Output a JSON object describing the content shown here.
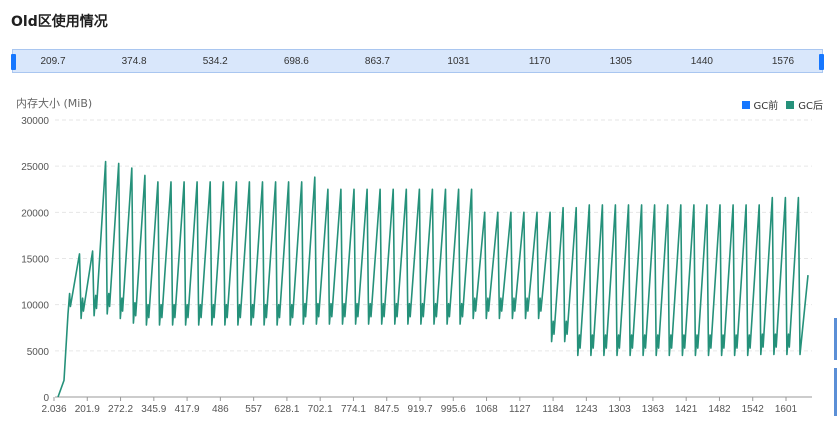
{
  "title": "Old区使用情况",
  "zoom_labels": [
    "209.7",
    "374.8",
    "534.2",
    "698.6",
    "863.7",
    "1031",
    "1170",
    "1305",
    "1440",
    "1576"
  ],
  "colors": {
    "gc_before": "#1677ff",
    "gc_after": "#25917a"
  },
  "chart_data": {
    "type": "line",
    "title": "",
    "xlabel": "",
    "ylabel": "内存大小 (MiB)",
    "ylim": [
      0,
      30000
    ],
    "yticks": [
      0,
      5000,
      10000,
      15000,
      20000,
      25000,
      30000
    ],
    "xtick_labels": [
      "2.036",
      "201.9",
      "272.2",
      "345.9",
      "417.9",
      "486",
      "557",
      "628.1",
      "702.1",
      "774.1",
      "847.5",
      "919.7",
      "995.6",
      "1068",
      "1127",
      "1184",
      "1243",
      "1303",
      "1363",
      "1421",
      "1482",
      "1542",
      "1601"
    ],
    "grid": true,
    "legend": [
      {
        "name": "GC前",
        "color": "#1677ff"
      },
      {
        "name": "GC后",
        "color": "#25917a"
      }
    ],
    "series": [
      {
        "name": "GC后",
        "color": "#25917a",
        "segments": [
          {
            "count": 1,
            "peak": 15500,
            "trough": 9000
          },
          {
            "count": 1,
            "peak": 15800,
            "trough": 8500
          },
          {
            "count": 1,
            "peak": 25500,
            "trough": 8800
          },
          {
            "count": 1,
            "peak": 25300,
            "trough": 9000
          },
          {
            "count": 1,
            "peak": 24800,
            "trough": 8500
          },
          {
            "count": 1,
            "peak": 24000,
            "trough": 8000
          },
          {
            "count": 12,
            "peak": 23300,
            "trough": 7800
          },
          {
            "count": 1,
            "peak": 23800,
            "trough": 7900
          },
          {
            "count": 12,
            "peak": 22500,
            "trough": 7900
          },
          {
            "count": 6,
            "peak": 20000,
            "trough": 8500
          },
          {
            "count": 2,
            "peak": 20500,
            "trough": 6000
          },
          {
            "count": 14,
            "peak": 20800,
            "trough": 4500
          },
          {
            "count": 3,
            "peak": 21600,
            "trough": 4600
          }
        ],
        "start": [
          0,
          1800
        ],
        "end_value": 13200
      }
    ]
  }
}
